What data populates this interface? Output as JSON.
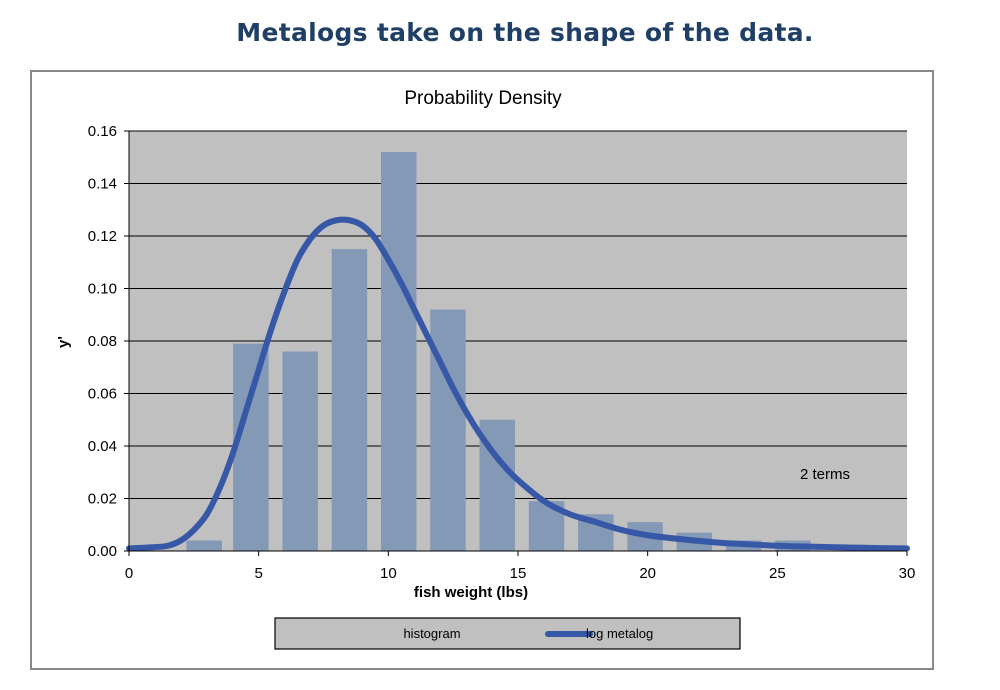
{
  "header": {
    "title": "Metalogs take on the shape of the data."
  },
  "chart_data": {
    "type": "bar",
    "title": "Probability Density",
    "xlabel": "fish weight (lbs)",
    "ylabel": "y'",
    "xlim": [
      0,
      30
    ],
    "ylim": [
      0,
      0.16
    ],
    "x_ticks": [
      "0",
      "5",
      "10",
      "15",
      "20",
      "25",
      "30"
    ],
    "y_ticks": [
      "0.00",
      "0.02",
      "0.04",
      "0.06",
      "0.08",
      "0.10",
      "0.12",
      "0.14",
      "0.16"
    ],
    "grid": true,
    "legend_position": "bottom",
    "annotation": "2 terms",
    "colors": {
      "histogram": "#8499b5",
      "metalog": "#3758a6",
      "plot_bg": "#c0c0c0"
    },
    "series": [
      {
        "name": "histogram",
        "type": "bar",
        "bin_width": 1.9,
        "centers": [
          2.9,
          4.7,
          6.6,
          8.5,
          10.4,
          12.3,
          14.2,
          16.1,
          18.0,
          19.9,
          21.8,
          23.7,
          25.6
        ],
        "values": [
          0.004,
          0.079,
          0.076,
          0.115,
          0.152,
          0.092,
          0.05,
          0.019,
          0.014,
          0.011,
          0.007,
          0.004,
          0.004
        ]
      },
      {
        "name": "log metalog",
        "type": "line",
        "x": [
          0,
          1,
          1.5,
          2,
          2.5,
          3,
          3.5,
          4,
          4.5,
          5,
          5.5,
          6,
          6.5,
          7,
          7.5,
          8,
          8.5,
          9,
          9.5,
          10,
          10.5,
          11,
          11.5,
          12,
          12.5,
          13,
          13.5,
          14,
          14.5,
          15,
          16,
          17,
          18,
          19,
          20,
          21,
          22,
          23,
          24,
          25,
          26,
          27,
          28,
          29,
          30
        ],
        "y": [
          0.001,
          0.0015,
          0.002,
          0.004,
          0.008,
          0.014,
          0.024,
          0.037,
          0.053,
          0.069,
          0.085,
          0.099,
          0.111,
          0.119,
          0.124,
          0.126,
          0.126,
          0.124,
          0.119,
          0.111,
          0.102,
          0.092,
          0.082,
          0.072,
          0.062,
          0.053,
          0.045,
          0.038,
          0.032,
          0.027,
          0.019,
          0.014,
          0.011,
          0.008,
          0.006,
          0.0048,
          0.0038,
          0.003,
          0.0025,
          0.002,
          0.0017,
          0.0015,
          0.0013,
          0.0011,
          0.001
        ]
      }
    ]
  }
}
